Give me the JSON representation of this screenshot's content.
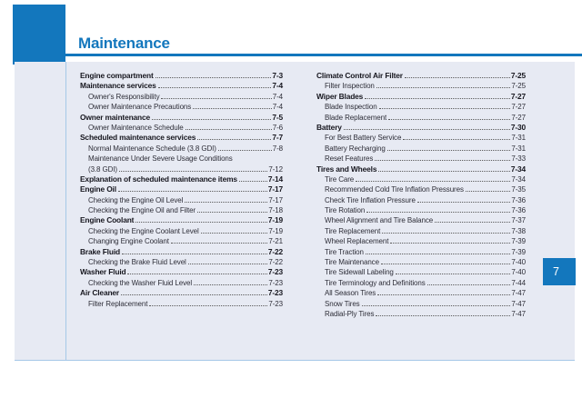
{
  "page": {
    "title": "Maintenance",
    "chapter_tab": "7"
  },
  "colors": {
    "accent_blue": "#1377bd",
    "panel_background": "#e7eaf3",
    "light_rule": "#a5c8e8"
  },
  "toc": {
    "left_column": [
      {
        "level": "main",
        "label": "Engine compartment",
        "page": "7-3"
      },
      {
        "level": "main",
        "label": "Maintenance services",
        "page": "7-4"
      },
      {
        "level": "sub",
        "label": "Owner's Responsibility",
        "page": "7-4"
      },
      {
        "level": "sub",
        "label": "Owner Maintenance Precautions",
        "page": "7-4"
      },
      {
        "level": "main",
        "label": "Owner maintenance",
        "page": "7-5"
      },
      {
        "level": "sub",
        "label": "Owner Maintenance Schedule",
        "page": "7-6"
      },
      {
        "level": "main",
        "label": "Scheduled maintenance services",
        "page": "7-7"
      },
      {
        "level": "sub",
        "label": "Normal Maintenance Schedule (3.8 GDI)",
        "page": "7-8"
      },
      {
        "level": "sub",
        "label": "Maintenance Under Severe Usage Conditions",
        "page": ""
      },
      {
        "level": "sub",
        "label": "(3.8 GDI)",
        "page": "7-12"
      },
      {
        "level": "main",
        "label": "Explanation of scheduled maintenance items",
        "page": "7-14"
      },
      {
        "level": "main",
        "label": "Engine Oil",
        "page": "7-17"
      },
      {
        "level": "sub",
        "label": "Checking the Engine Oil Level",
        "page": "7-17"
      },
      {
        "level": "sub",
        "label": "Checking the Engine Oil and Filter",
        "page": "7-18"
      },
      {
        "level": "main",
        "label": "Engine Coolant",
        "page": "7-19"
      },
      {
        "level": "sub",
        "label": "Checking the Engine Coolant Level",
        "page": "7-19"
      },
      {
        "level": "sub",
        "label": "Changing Engine Coolant",
        "page": "7-21"
      },
      {
        "level": "main",
        "label": "Brake Fluid",
        "page": "7-22"
      },
      {
        "level": "sub",
        "label": "Checking the Brake Fluid Level",
        "page": "7-22"
      },
      {
        "level": "main",
        "label": "Washer Fluid",
        "page": "7-23"
      },
      {
        "level": "sub",
        "label": "Checking the Washer Fluid Level",
        "page": "7-23"
      },
      {
        "level": "main",
        "label": "Air Cleaner",
        "page": "7-23"
      },
      {
        "level": "sub",
        "label": "Filter Replacement",
        "page": "7-23"
      }
    ],
    "right_column": [
      {
        "level": "main",
        "label": "Climate Control Air Filter",
        "page": "7-25"
      },
      {
        "level": "sub",
        "label": "Filter Inspection",
        "page": "7-25"
      },
      {
        "level": "main",
        "label": "Wiper Blades",
        "page": "7-27"
      },
      {
        "level": "sub",
        "label": "Blade Inspection",
        "page": "7-27"
      },
      {
        "level": "sub",
        "label": "Blade Replacement",
        "page": "7-27"
      },
      {
        "level": "main",
        "label": "Battery",
        "page": "7-30"
      },
      {
        "level": "sub",
        "label": "For Best Battery Service",
        "page": "7-31"
      },
      {
        "level": "sub",
        "label": "Battery Recharging",
        "page": "7-31"
      },
      {
        "level": "sub",
        "label": "Reset Features",
        "page": "7-33"
      },
      {
        "level": "main",
        "label": "Tires and Wheels",
        "page": "7-34"
      },
      {
        "level": "sub",
        "label": "Tire Care",
        "page": "7-34"
      },
      {
        "level": "sub",
        "label": "Recommended Cold Tire Inflation Pressures",
        "page": "7-35"
      },
      {
        "level": "sub",
        "label": "Check Tire Inflation Pressure",
        "page": "7-36"
      },
      {
        "level": "sub",
        "label": "Tire Rotation",
        "page": "7-36"
      },
      {
        "level": "sub",
        "label": "Wheel Alignment and Tire Balance",
        "page": "7-37"
      },
      {
        "level": "sub",
        "label": "Tire Replacement",
        "page": "7-38"
      },
      {
        "level": "sub",
        "label": "Wheel Replacement",
        "page": "7-39"
      },
      {
        "level": "sub",
        "label": "Tire Traction",
        "page": "7-39"
      },
      {
        "level": "sub",
        "label": "Tire Maintenance",
        "page": "7-40"
      },
      {
        "level": "sub",
        "label": "Tire Sidewall Labeling",
        "page": "7-40"
      },
      {
        "level": "sub",
        "label": "Tire Terminology and Definitions",
        "page": "7-44"
      },
      {
        "level": "sub",
        "label": "All Season Tires",
        "page": "7-47"
      },
      {
        "level": "sub",
        "label": "Snow Tires",
        "page": "7-47"
      },
      {
        "level": "sub",
        "label": "Radial-Ply Tires",
        "page": "7-47"
      }
    ]
  }
}
